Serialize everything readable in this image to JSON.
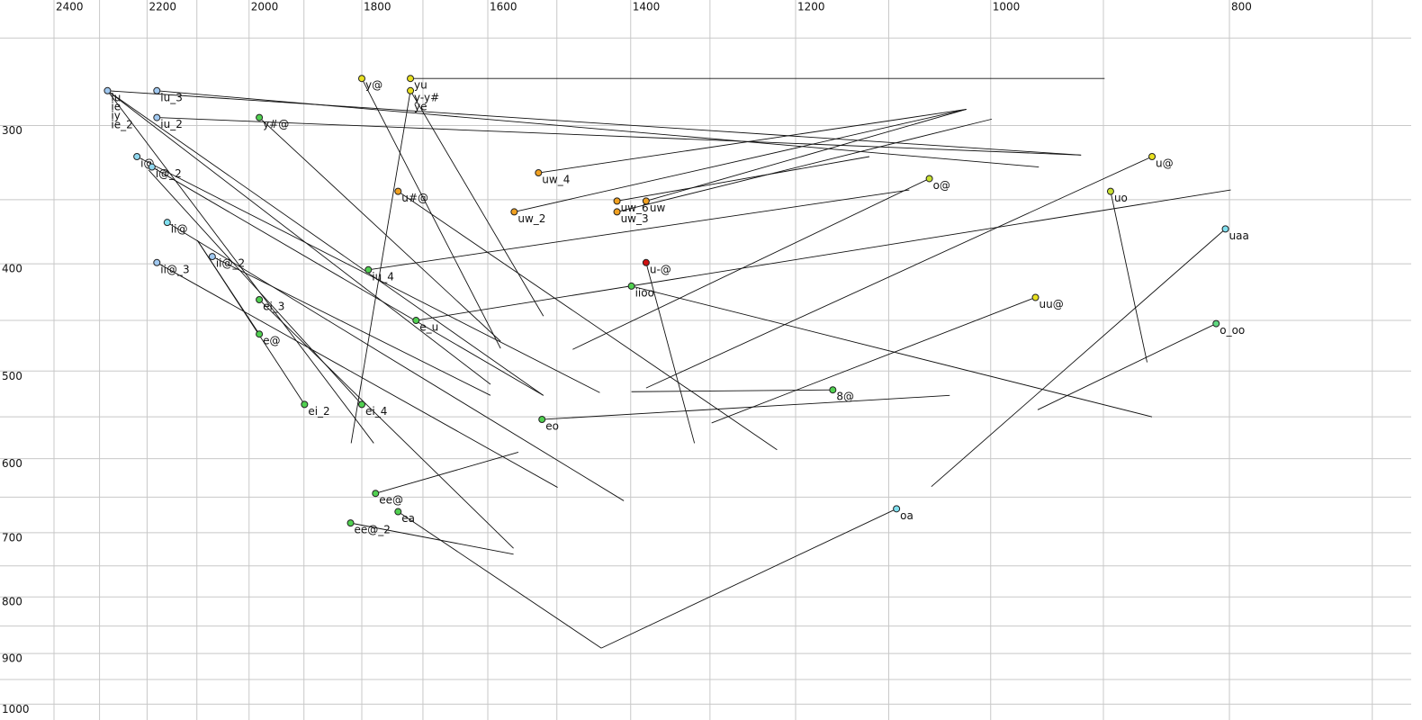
{
  "chart_data": {
    "type": "scatter",
    "xscale": "log",
    "yscale": "log",
    "xlim": [
      2400,
      675
    ],
    "ylim": [
      231,
      1024
    ],
    "xticks": [
      2400,
      2200,
      2000,
      1800,
      1600,
      1400,
      1200,
      1000,
      800
    ],
    "xminor": [
      2300,
      2100,
      1900,
      1700,
      1500,
      1300,
      1100,
      900,
      700
    ],
    "yticks": [
      300,
      400,
      500,
      600,
      700,
      800,
      900,
      1000
    ],
    "yminor": [
      250,
      350,
      450,
      550,
      650,
      750,
      850,
      950
    ],
    "grid": true,
    "points": [
      {
        "label": "iu",
        "f2": 2283,
        "f1": 279,
        "f2_end": 919,
        "f1_end": 319,
        "color": "#a0c8f0"
      },
      {
        "label": "ie",
        "f2": 2283,
        "f1": 279,
        "f2_end": 1596,
        "f1_end": 514,
        "color": "#a0c8f0"
      },
      {
        "label": "iy",
        "f2": 2283,
        "f1": 279,
        "f2_end": 1519,
        "f1_end": 526,
        "color": "#a0c8f0"
      },
      {
        "label": "ie_2",
        "f2": 2283,
        "f1": 279,
        "f2_end": 1780,
        "f1_end": 581,
        "color": "#a0c8f0"
      },
      {
        "label": "iu_3",
        "f2": 2180,
        "f1": 279,
        "f2_end": 956,
        "f1_end": 327,
        "color": "#a0c8f0"
      },
      {
        "label": "iu_2",
        "f2": 2180,
        "f1": 295,
        "f2_end": 919,
        "f1_end": 319,
        "color": "#a0c8f0"
      },
      {
        "label": "y@",
        "f2": 1800,
        "f1": 272,
        "f2_end": 1581,
        "f1_end": 477,
        "color": "#e8e020"
      },
      {
        "label": "yu",
        "f2": 1720,
        "f1": 272,
        "f2_end": 899,
        "f1_end": 272,
        "color": "#e8e020"
      },
      {
        "label": "y-y#",
        "f2": 1720,
        "f1": 279,
        "f2_end": 1818,
        "f1_end": 581,
        "color": "#e8e020"
      },
      {
        "label": "ye",
        "f2": 1720,
        "f1": 279,
        "f2_end": 1519,
        "f1_end": 446,
        "color": "#e8e020"
      },
      {
        "label": "y#@",
        "f2": 1981,
        "f1": 295,
        "f2_end": 1581,
        "f1_end": 470,
        "color": "#50d050"
      },
      {
        "label": "i@",
        "f2": 2221,
        "f1": 320,
        "f2_end": 1441,
        "f1_end": 523,
        "color": "#90d8f0"
      },
      {
        "label": "i@_2",
        "f2": 2190,
        "f1": 327,
        "f2_end": 1519,
        "f1_end": 526,
        "color": "#90d8f0"
      },
      {
        "label": "u#@",
        "f2": 1740,
        "f1": 344,
        "f2_end": 1221,
        "f1_end": 589,
        "color": "#f0a020"
      },
      {
        "label": "uw_4",
        "f2": 1526,
        "f1": 331,
        "f2_end": 1023,
        "f1_end": 290,
        "color": "#f0a020"
      },
      {
        "label": "uw_2",
        "f2": 1561,
        "f1": 359,
        "f2_end": 1023,
        "f1_end": 290,
        "color": "#f0a020"
      },
      {
        "label": "uw_6",
        "f2": 1418,
        "f1": 351,
        "f2_end": 1120,
        "f1_end": 320,
        "color": "#f0a020"
      },
      {
        "label": "uw",
        "f2": 1380,
        "f1": 351,
        "f2_end": 1023,
        "f1_end": 290,
        "color": "#f0a020"
      },
      {
        "label": "uw_3",
        "f2": 1418,
        "f1": 359,
        "f2_end": 999,
        "f1_end": 296,
        "color": "#f0a020"
      },
      {
        "label": "o@",
        "f2": 1059,
        "f1": 335,
        "f2_end": 1478,
        "f1_end": 478,
        "color": "#c8e030"
      },
      {
        "label": "u@",
        "f2": 860,
        "f1": 320,
        "f2_end": 1380,
        "f1_end": 518,
        "color": "#e8e020"
      },
      {
        "label": "uo",
        "f2": 894,
        "f1": 344,
        "f2_end": 864,
        "f1_end": 491,
        "color": "#c8e030"
      },
      {
        "label": "uaa",
        "f2": 803,
        "f1": 372,
        "f2_end": 1057,
        "f1_end": 636,
        "color": "#80e0f0"
      },
      {
        "label": "ii@",
        "f2": 2159,
        "f1": 367,
        "f2_end": 1409,
        "f1_end": 655,
        "color": "#80e0f0"
      },
      {
        "label": "ii@_2",
        "f2": 2070,
        "f1": 394,
        "f2_end": 1596,
        "f1_end": 526,
        "color": "#a0c8f0"
      },
      {
        "label": "ii@_3",
        "f2": 2180,
        "f1": 399,
        "f2_end": 1499,
        "f1_end": 637,
        "color": "#a0c8f0"
      },
      {
        "label": "iu_4",
        "f2": 1789,
        "f1": 405,
        "f2_end": 1079,
        "f1_end": 343,
        "color": "#50d050"
      },
      {
        "label": "u-@",
        "f2": 1380,
        "f1": 399,
        "f2_end": 1319,
        "f1_end": 581,
        "color": "#d01010"
      },
      {
        "label": "iioo",
        "f2": 1399,
        "f1": 419,
        "f2_end": 860,
        "f1_end": 550,
        "color": "#50d050"
      },
      {
        "label": "ei_3",
        "f2": 1981,
        "f1": 431,
        "f2_end": 1562,
        "f1_end": 723,
        "color": "#50d050"
      },
      {
        "label": "e_u",
        "f2": 1711,
        "f1": 450,
        "f2_end": 799,
        "f1_end": 343,
        "color": "#50d050"
      },
      {
        "label": "uu@",
        "f2": 959,
        "f1": 429,
        "f2_end": 1298,
        "f1_end": 557,
        "color": "#e8e020"
      },
      {
        "label": "o_oo",
        "f2": 810,
        "f1": 453,
        "f2_end": 957,
        "f1_end": 542,
        "color": "#60d880"
      },
      {
        "label": "e@",
        "f2": 1981,
        "f1": 463,
        "f2_end": 2099,
        "f1_end": 381,
        "color": "#50d050"
      },
      {
        "label": "8@",
        "f2": 1159,
        "f1": 520,
        "f2_end": 1399,
        "f1_end": 522,
        "color": "#50d050"
      },
      {
        "label": "ei_2",
        "f2": 1899,
        "f1": 536,
        "f2_end": 2099,
        "f1_end": 381,
        "color": "#50d050"
      },
      {
        "label": "ei_4",
        "f2": 1800,
        "f1": 536,
        "f2_end": 2197,
        "f1_end": 329,
        "color": "#50d050"
      },
      {
        "label": "eo",
        "f2": 1521,
        "f1": 553,
        "f2_end": 1039,
        "f1_end": 526,
        "color": "#50d050"
      },
      {
        "label": "ee@",
        "f2": 1777,
        "f1": 645,
        "f2_end": 1555,
        "f1_end": 592,
        "color": "#50d050"
      },
      {
        "label": "ea",
        "f2": 1740,
        "f1": 670,
        "f2_end": 1439,
        "f1_end": 890,
        "color": "#50d050"
      },
      {
        "label": "ee@_2",
        "f2": 1819,
        "f1": 686,
        "f2_end": 1562,
        "f1_end": 732,
        "color": "#50d050"
      },
      {
        "label": "oa",
        "f2": 1092,
        "f1": 666,
        "f2_end": 1439,
        "f1_end": 890,
        "color": "#80e0f0"
      }
    ]
  }
}
